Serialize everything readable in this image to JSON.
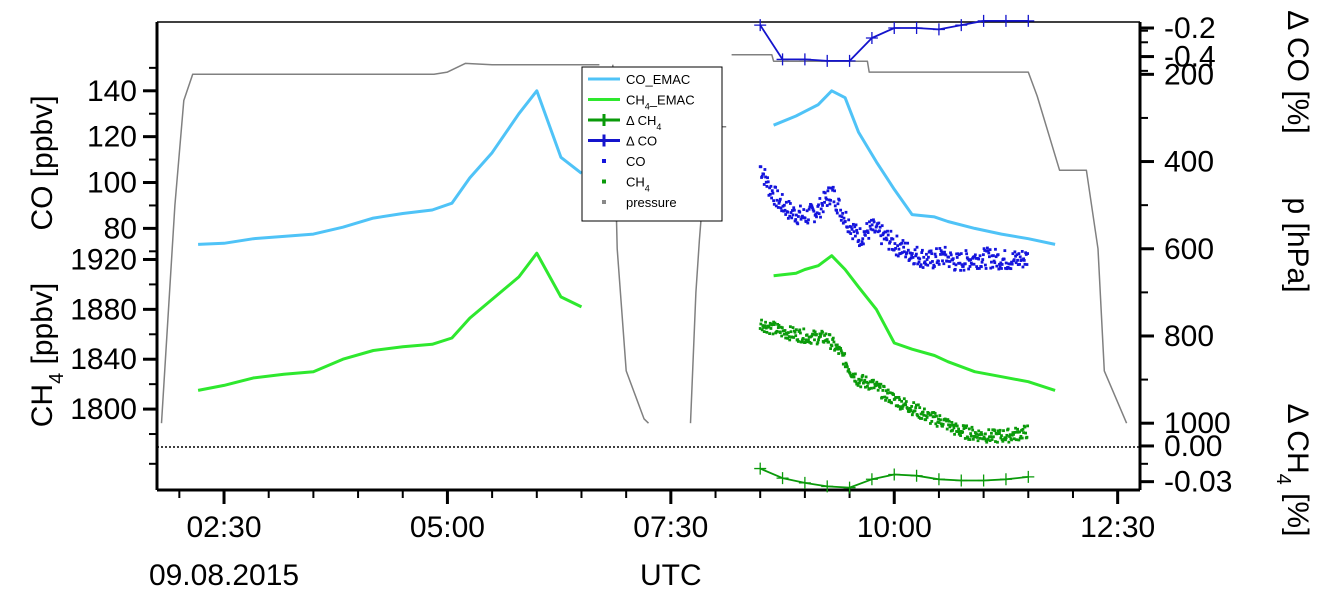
{
  "chart_data": {
    "type": "line",
    "x_axis": {
      "label": "UTC",
      "date_label": "09.08.2015",
      "unit": "hours UTC",
      "range": [
        1.75,
        12.75
      ],
      "ticks": [
        {
          "value": 2.5,
          "label": "02:30"
        },
        {
          "value": 5.0,
          "label": "05:00"
        },
        {
          "value": 7.5,
          "label": "07:30"
        },
        {
          "value": 10.0,
          "label": "10:00"
        },
        {
          "value": 12.5,
          "label": "12:30"
        }
      ]
    },
    "axes": {
      "co": {
        "label": "CO [ppbv]",
        "range": [
          54,
          170
        ],
        "ticks": [
          80,
          100,
          120,
          140
        ]
      },
      "ch4": {
        "label_main": "CH",
        "label_sub": "4",
        "label_unit": "[ppbv]",
        "range": [
          1772,
          1926
        ],
        "ticks": [
          1800,
          1840,
          1880,
          1920
        ]
      },
      "pressure": {
        "label": "p [hPa]",
        "range": [
          1050,
          80
        ],
        "ticks": [
          200,
          400,
          600,
          800,
          1000
        ]
      },
      "delta_co": {
        "label": "Δ CO [%]",
        "range": [
          -0.55,
          -0.13
        ],
        "ticks": [
          {
            "value": -0.2,
            "label": "-0.2"
          },
          {
            "value": -0.4,
            "label": "-0.4"
          }
        ]
      },
      "delta_ch4": {
        "label_main": "Δ CH",
        "label_sub": "4",
        "label_unit": "[%]",
        "range": [
          -0.037,
          0.005
        ],
        "ticks": [
          {
            "value": 0.0,
            "label": "0.00"
          },
          {
            "value": -0.03,
            "label": "-0.03"
          }
        ]
      }
    },
    "legend": {
      "placement": "top-center",
      "entries": [
        {
          "label": "CO_EMAC",
          "symbol": "line",
          "color": "#4fc3f7"
        },
        {
          "label": "CH",
          "sub": "4",
          "suffix": "_EMAC",
          "symbol": "line",
          "color": "#2ee82e"
        },
        {
          "label": "Δ CH",
          "sub": "4",
          "suffix": "",
          "symbol": "line-cross",
          "color": "#0a9a0a"
        },
        {
          "label": "Δ CO",
          "symbol": "line-cross",
          "color": "#1414cc"
        },
        {
          "label": "CO",
          "symbol": "dot",
          "color": "#1414dd"
        },
        {
          "label": "CH",
          "sub": "4",
          "suffix": "",
          "symbol": "dot",
          "color": "#0a9a0a"
        },
        {
          "label": "pressure",
          "symbol": "dot",
          "color": "#888888"
        }
      ]
    },
    "colors": {
      "co_emac": "#4fc3f7",
      "ch4_emac": "#2ee82e",
      "co_obs": "#1414dd",
      "ch4_obs": "#0a9a0a",
      "delta_co": "#1414cc",
      "delta_ch4": "#0a9a0a",
      "pressure": "#808080"
    },
    "series": {
      "co_emac": [
        [
          [
            2.21,
            73
          ],
          [
            2.5,
            73.5
          ],
          [
            2.83,
            75.5
          ],
          [
            3.17,
            76.5
          ],
          [
            3.5,
            77.5
          ],
          [
            3.83,
            80.5
          ],
          [
            4.17,
            84.5
          ],
          [
            4.5,
            86.5
          ],
          [
            4.83,
            88
          ],
          [
            5.05,
            91
          ],
          [
            5.25,
            102
          ],
          [
            5.5,
            113
          ],
          [
            5.8,
            130
          ],
          [
            6.0,
            140
          ],
          [
            6.27,
            111
          ],
          [
            6.5,
            104
          ]
        ],
        [
          [
            8.65,
            125
          ],
          [
            8.9,
            129
          ],
          [
            9.0,
            131
          ],
          [
            9.15,
            134
          ],
          [
            9.3,
            140
          ],
          [
            9.45,
            137
          ],
          [
            9.6,
            122
          ],
          [
            9.8,
            109
          ],
          [
            10.0,
            97
          ],
          [
            10.2,
            86
          ],
          [
            10.45,
            85
          ],
          [
            10.6,
            83
          ],
          [
            10.9,
            80
          ],
          [
            11.2,
            77.5
          ],
          [
            11.5,
            75.5
          ],
          [
            11.8,
            73
          ]
        ]
      ],
      "ch4_emac": [
        [
          [
            2.21,
            1815
          ],
          [
            2.5,
            1819
          ],
          [
            2.83,
            1825
          ],
          [
            3.17,
            1828
          ],
          [
            3.5,
            1830
          ],
          [
            3.83,
            1840
          ],
          [
            4.17,
            1847
          ],
          [
            4.5,
            1850
          ],
          [
            4.83,
            1852
          ],
          [
            5.05,
            1857
          ],
          [
            5.25,
            1873
          ],
          [
            5.5,
            1888
          ],
          [
            5.8,
            1906
          ],
          [
            6.0,
            1925
          ],
          [
            6.27,
            1890
          ],
          [
            6.5,
            1882
          ]
        ],
        [
          [
            8.65,
            1907
          ],
          [
            8.9,
            1909
          ],
          [
            9.0,
            1912
          ],
          [
            9.15,
            1915
          ],
          [
            9.3,
            1923
          ],
          [
            9.45,
            1912
          ],
          [
            9.6,
            1898
          ],
          [
            9.8,
            1880
          ],
          [
            10.0,
            1853
          ],
          [
            10.2,
            1848
          ],
          [
            10.45,
            1843
          ],
          [
            10.6,
            1838
          ],
          [
            10.9,
            1830
          ],
          [
            11.2,
            1826
          ],
          [
            11.5,
            1822
          ],
          [
            11.8,
            1815
          ]
        ]
      ],
      "pressure": [
        [
          [
            1.8,
            1000
          ],
          [
            1.95,
            500
          ],
          [
            2.05,
            260
          ],
          [
            2.15,
            200
          ],
          [
            4.5,
            200
          ],
          [
            4.85,
            200
          ],
          [
            5.0,
            195
          ],
          [
            5.2,
            175
          ],
          [
            5.5,
            178
          ],
          [
            6.7,
            178
          ]
        ],
        [
          [
            6.85,
            178
          ],
          [
            6.9,
            600
          ],
          [
            7.0,
            880
          ],
          [
            7.2,
            990
          ],
          [
            7.25,
            1000
          ]
        ],
        [
          [
            7.72,
            1000
          ],
          [
            7.78,
            700
          ],
          [
            7.82,
            580
          ],
          [
            7.92,
            320
          ],
          [
            8.12,
            320
          ]
        ],
        [
          [
            8.18,
            155
          ],
          [
            8.63,
            155
          ],
          [
            8.65,
            170
          ],
          [
            9.7,
            170
          ],
          [
            9.72,
            195
          ],
          [
            10.7,
            195
          ],
          [
            11.3,
            195
          ],
          [
            11.5,
            195
          ],
          [
            11.6,
            250
          ],
          [
            11.85,
            420
          ],
          [
            12.15,
            420
          ],
          [
            12.28,
            600
          ],
          [
            12.35,
            880
          ],
          [
            12.6,
            1000
          ]
        ]
      ],
      "delta_co": [
        [
          8.5,
          -0.18
        ],
        [
          8.75,
          -0.42
        ],
        [
          9.0,
          -0.42
        ],
        [
          9.25,
          -0.43
        ],
        [
          9.5,
          -0.43
        ],
        [
          9.75,
          -0.27
        ],
        [
          10.0,
          -0.2
        ],
        [
          10.25,
          -0.2
        ],
        [
          10.5,
          -0.21
        ],
        [
          10.75,
          -0.18
        ],
        [
          11.0,
          -0.15
        ],
        [
          11.25,
          -0.15
        ],
        [
          11.5,
          -0.15
        ]
      ],
      "delta_ch4": [
        [
          8.5,
          -0.019
        ],
        [
          8.75,
          -0.027
        ],
        [
          9.0,
          -0.031
        ],
        [
          9.25,
          -0.034
        ],
        [
          9.5,
          -0.035
        ],
        [
          9.75,
          -0.028
        ],
        [
          10.0,
          -0.024
        ],
        [
          10.25,
          -0.025
        ],
        [
          10.5,
          -0.028
        ],
        [
          10.75,
          -0.029
        ],
        [
          11.0,
          -0.029
        ],
        [
          11.25,
          -0.028
        ],
        [
          11.5,
          -0.026
        ]
      ],
      "co_obs_trend": [
        [
          8.5,
          107
        ],
        [
          8.6,
          98
        ],
        [
          8.7,
          92
        ],
        [
          8.85,
          87
        ],
        [
          9.0,
          85
        ],
        [
          9.15,
          88
        ],
        [
          9.3,
          96
        ],
        [
          9.4,
          88
        ],
        [
          9.5,
          82
        ],
        [
          9.6,
          76
        ],
        [
          9.75,
          80
        ],
        [
          9.9,
          76
        ],
        [
          10.05,
          72
        ],
        [
          10.2,
          69
        ],
        [
          10.4,
          66
        ],
        [
          10.55,
          68
        ],
        [
          10.7,
          65
        ],
        [
          10.9,
          67
        ],
        [
          11.1,
          67
        ],
        [
          11.3,
          66
        ],
        [
          11.5,
          67
        ]
      ],
      "ch4_obs_trend": [
        [
          8.5,
          1869
        ],
        [
          8.6,
          1866
        ],
        [
          8.75,
          1862
        ],
        [
          8.9,
          1860
        ],
        [
          9.05,
          1858
        ],
        [
          9.25,
          1857
        ],
        [
          9.4,
          1845
        ],
        [
          9.5,
          1832
        ],
        [
          9.6,
          1823
        ],
        [
          9.75,
          1820
        ],
        [
          9.9,
          1812
        ],
        [
          10.05,
          1806
        ],
        [
          10.2,
          1801
        ],
        [
          10.4,
          1793
        ],
        [
          10.55,
          1790
        ],
        [
          10.7,
          1783
        ],
        [
          10.9,
          1780
        ],
        [
          11.1,
          1778
        ],
        [
          11.3,
          1779
        ],
        [
          11.5,
          1782
        ]
      ]
    },
    "reference_line": {
      "style": "dotted",
      "value": 0.0
    }
  }
}
